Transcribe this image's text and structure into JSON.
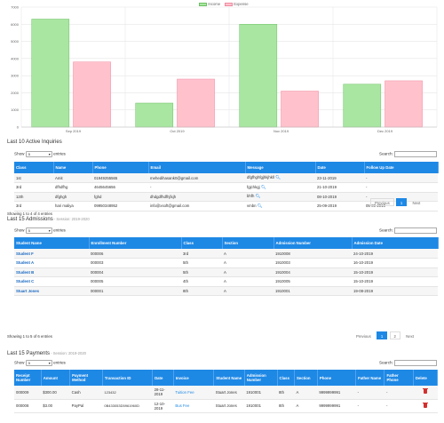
{
  "chart_data": {
    "type": "bar",
    "categories": [
      "Sep 2019",
      "Oct 2019",
      "Nov 2019",
      "Dec 2019"
    ],
    "series": [
      {
        "name": "Income",
        "values": [
          6300,
          1400,
          6000,
          2500
        ],
        "color": "#a8e6a1"
      },
      {
        "name": "Expense",
        "values": [
          3800,
          2800,
          2100,
          2700
        ],
        "color": "#ffc2cd"
      }
    ],
    "ylim": [
      0,
      7000
    ],
    "yticks": [
      0,
      1000,
      2000,
      3000,
      4000,
      5000,
      6000,
      7000
    ],
    "grid": true,
    "legend": "top-center"
  },
  "inquiries": {
    "title": "Last 10 Active Inquiries",
    "show_label": "Show",
    "entries_label": "entries",
    "page_size": "5",
    "search_label": "Search:",
    "columns": [
      "Class",
      "Name",
      "Phone",
      "Email",
      "Message",
      "Date",
      "Follow Up Date"
    ],
    "rows": [
      [
        "1st",
        "Amit",
        "01949255565",
        "mehedihasank0@gmail.com",
        "dfgfhghfgjhkjhkll",
        "23-11-2019",
        "-"
      ],
      [
        "3rd",
        "dfhdfhg",
        "4645645656",
        "-",
        "fgjchkgj",
        "21-10-2019",
        "-"
      ],
      [
        "12th",
        "dfghgh",
        "fghd",
        "dhdgdfhdfhjfxjh",
        "bhfh",
        "08-10-2019",
        "-"
      ],
      [
        "3rd",
        "hari maliya",
        "09950348952",
        "info@xsoft@gmail.com",
        "vmbn",
        "25-09-2019",
        "05-09-2019"
      ]
    ],
    "info": "Showing 1 to 4 of 4 entries",
    "previous": "Previous",
    "page": "1",
    "next": "Next"
  },
  "admissions": {
    "title": "Last 15 Admissions",
    "session": " - Session: 2019-2020",
    "show_label": "Show",
    "entries_label": "entries",
    "page_size": "5",
    "search_label": "Search:",
    "columns": [
      "Student Name",
      "Enrollment Number",
      "Class",
      "Section",
      "Admission Number",
      "Admission Date"
    ],
    "rows": [
      [
        "Student F",
        "000006",
        "3rd",
        "A",
        "1910008",
        "24-10-2019"
      ],
      [
        "Student A",
        "000003",
        "5th",
        "A",
        "1910003",
        "16-10-2019"
      ],
      [
        "Student B",
        "000004",
        "5th",
        "A",
        "1910004",
        "15-10-2019"
      ],
      [
        "Student C",
        "000005",
        "4th",
        "A",
        "1910005",
        "15-10-2019"
      ],
      [
        "Stuart Jones",
        "000001",
        "8th",
        "A",
        "1910001",
        "19-08-2019"
      ]
    ],
    "info": "Showing 1 to 5 of 6 entries",
    "previous": "Previous",
    "page1": "1",
    "page2": "2",
    "next": "Next"
  },
  "payments": {
    "title": "Last 15 Payments",
    "session": " - Session: 2019-2020",
    "show_label": "Show",
    "entries_label": "entries",
    "page_size": "5",
    "search_label": "Search:",
    "columns": [
      "Receipt Number",
      "Amount",
      "Payment Method",
      "Transaction ID",
      "Date",
      "Invoice",
      "Student Name",
      "Admission Number",
      "Class",
      "Section",
      "Phone",
      "Father Name",
      "Father Phone",
      "Delete"
    ],
    "rows": [
      [
        "000009",
        "$300.00",
        "Cash",
        "123432",
        "28-11-2019",
        "Tuition Fee",
        "Stuart Jones",
        "1910001",
        "8th",
        "A",
        "9999999991",
        "-",
        "-"
      ],
      [
        "000008",
        "$3.00",
        "PayPal",
        "0B433053D5961960D",
        "12-10-2019",
        "Bus Fee",
        "Stuart Jones",
        "1910001",
        "8th",
        "A",
        "9999999991",
        "-",
        "-"
      ]
    ]
  }
}
